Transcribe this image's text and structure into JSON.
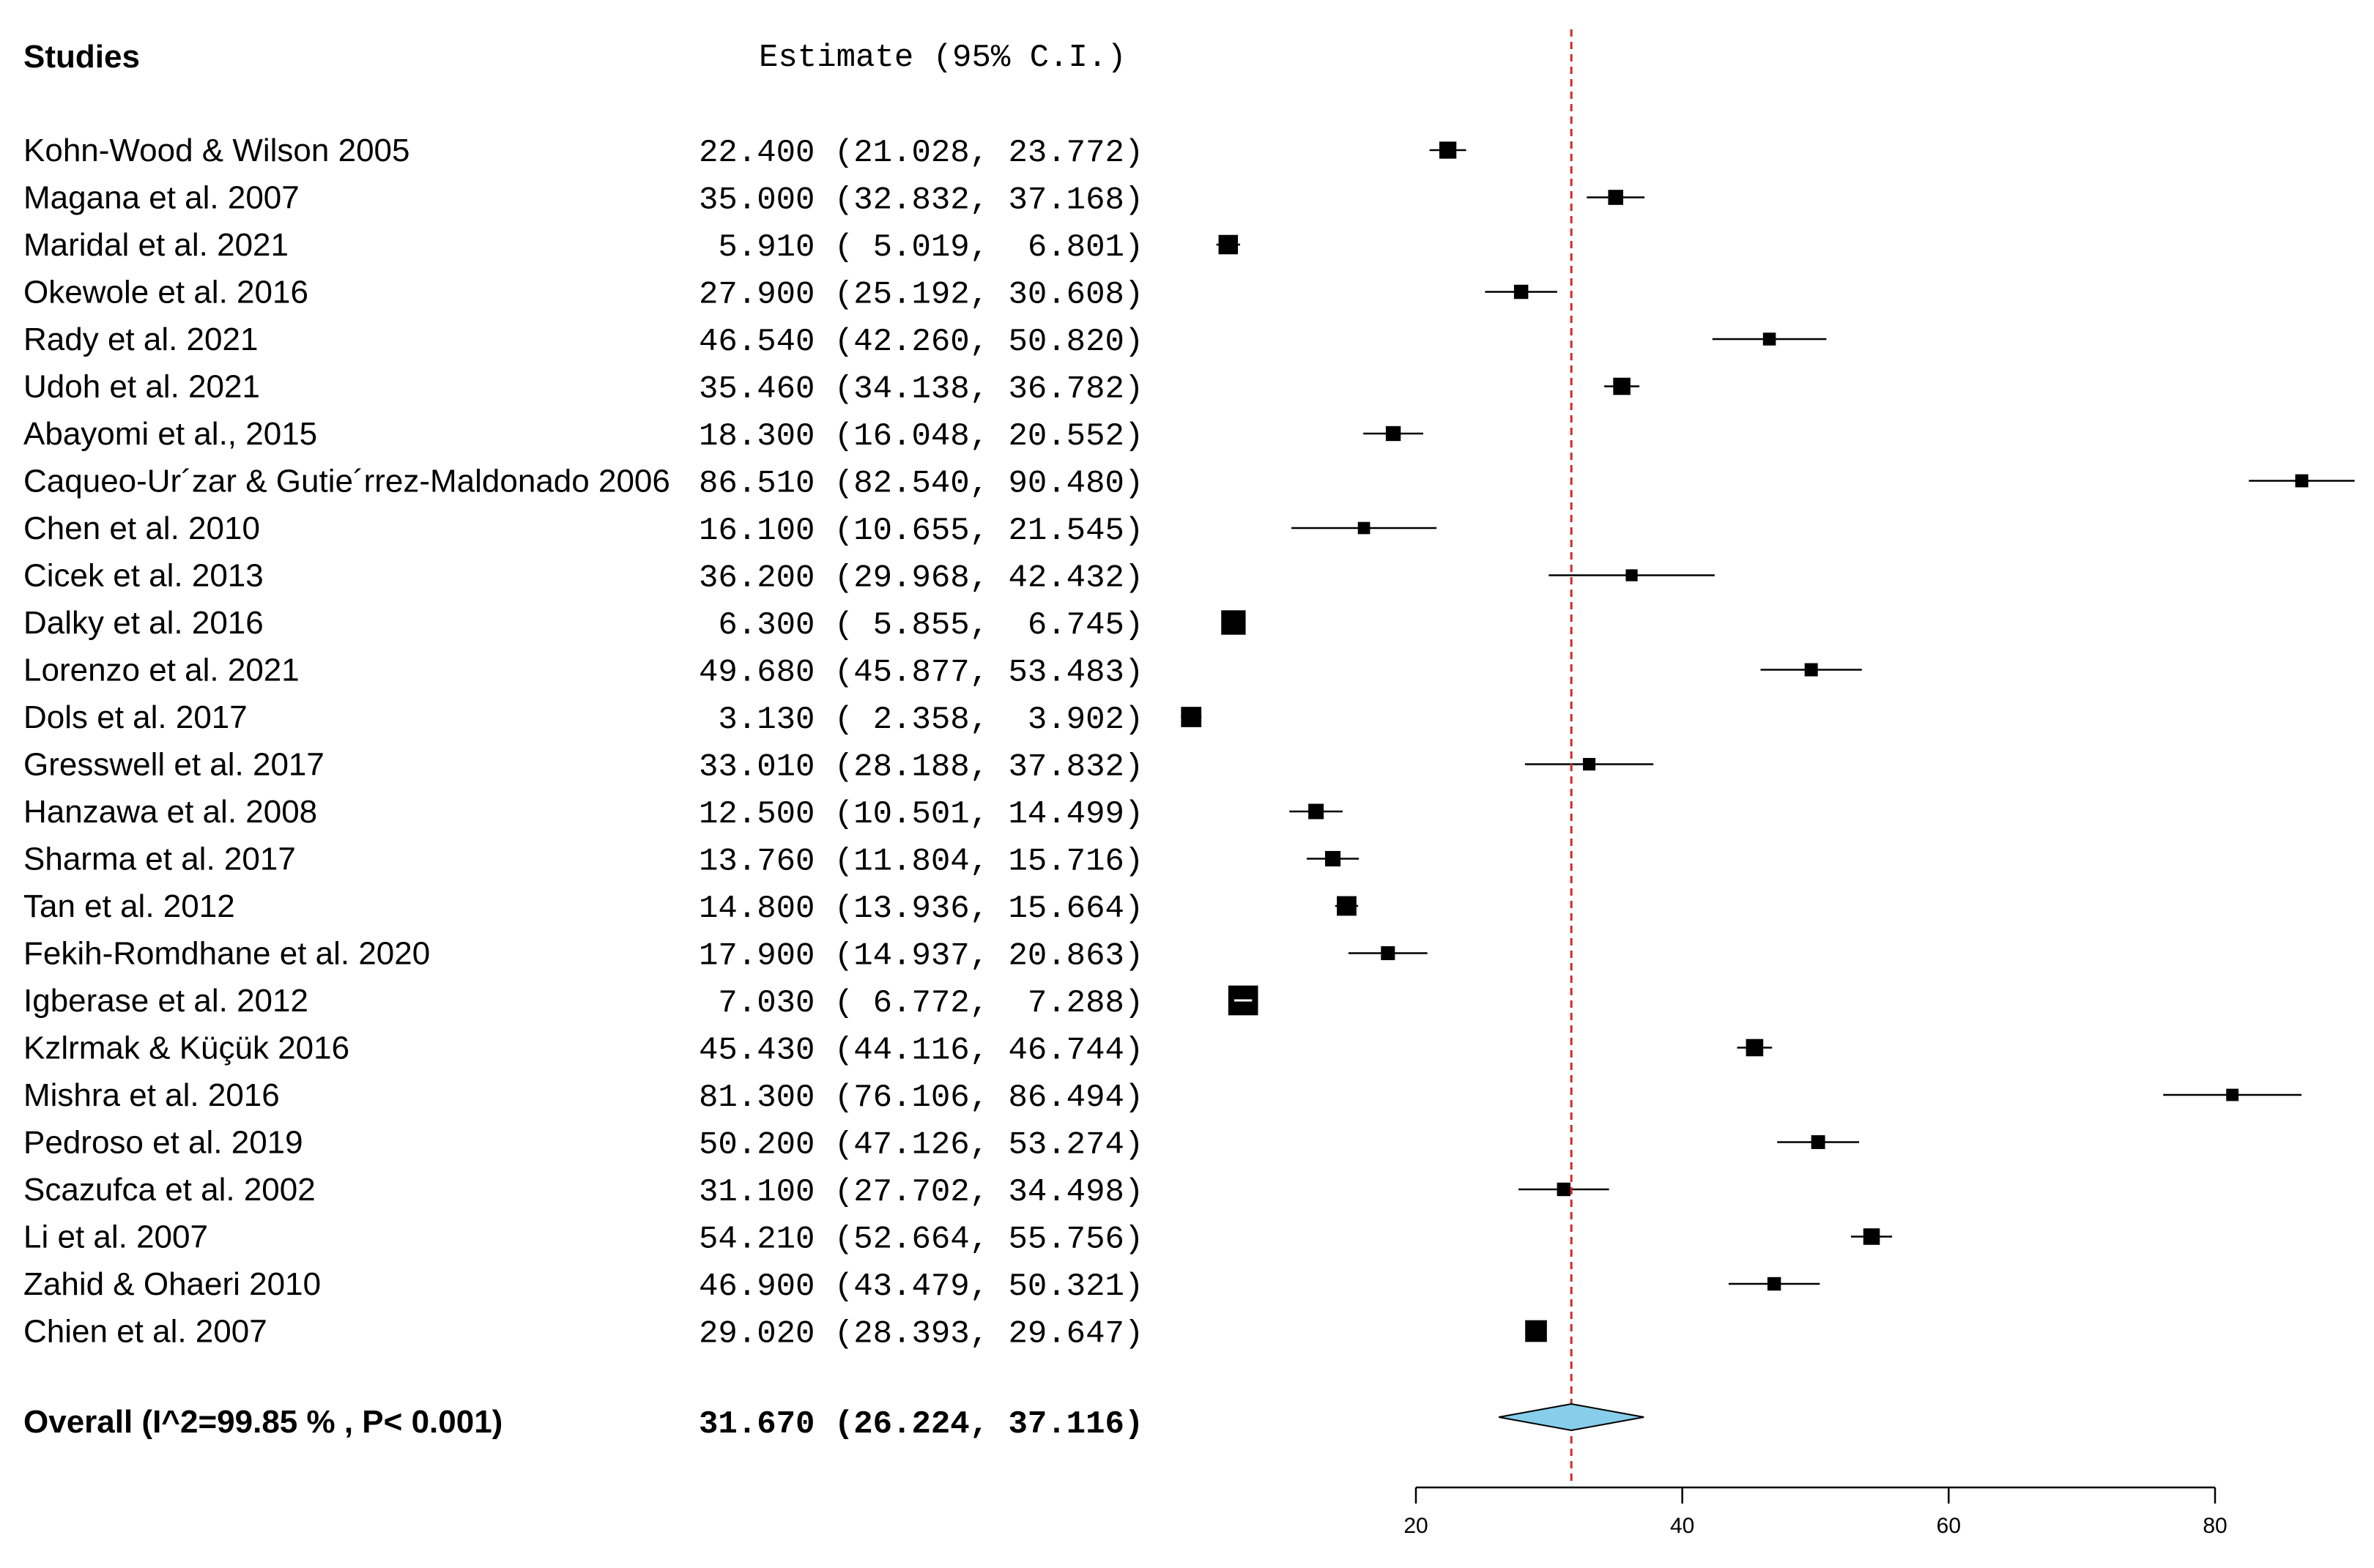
{
  "chart_data": {
    "type": "forest",
    "header_studies": "Studies",
    "header_estimate": "Estimate (95% C.I.)",
    "studies": [
      {
        "name": "Kohn-Wood & Wilson 2005",
        "estimate": 22.4,
        "lower": 21.028,
        "upper": 23.772,
        "text": "22.400 (21.028, 23.772)"
      },
      {
        "name": "Magana et al. 2007",
        "estimate": 35.0,
        "lower": 32.832,
        "upper": 37.168,
        "text": "35.000 (32.832, 37.168)"
      },
      {
        "name": "Maridal et al. 2021",
        "estimate": 5.91,
        "lower": 5.019,
        "upper": 6.801,
        "text": " 5.910 ( 5.019,  6.801)"
      },
      {
        "name": "Okewole et al. 2016",
        "estimate": 27.9,
        "lower": 25.192,
        "upper": 30.608,
        "text": "27.900 (25.192, 30.608)"
      },
      {
        "name": "Rady et al. 2021",
        "estimate": 46.54,
        "lower": 42.26,
        "upper": 50.82,
        "text": "46.540 (42.260, 50.820)"
      },
      {
        "name": "Udoh et al. 2021",
        "estimate": 35.46,
        "lower": 34.138,
        "upper": 36.782,
        "text": "35.460 (34.138, 36.782)"
      },
      {
        "name": "Abayomi et al., 2015",
        "estimate": 18.3,
        "lower": 16.048,
        "upper": 20.552,
        "text": "18.300 (16.048, 20.552)"
      },
      {
        "name": "Caqueo-Ur´zar & Gutie´rrez-Maldonado 2006",
        "estimate": 86.51,
        "lower": 82.54,
        "upper": 90.48,
        "text": "86.510 (82.540, 90.480)"
      },
      {
        "name": "Chen et al. 2010",
        "estimate": 16.1,
        "lower": 10.655,
        "upper": 21.545,
        "text": "16.100 (10.655, 21.545)"
      },
      {
        "name": "Cicek et al. 2013",
        "estimate": 36.2,
        "lower": 29.968,
        "upper": 42.432,
        "text": "36.200 (29.968, 42.432)"
      },
      {
        "name": "Dalky et al. 2016",
        "estimate": 6.3,
        "lower": 5.855,
        "upper": 6.745,
        "text": " 6.300 ( 5.855,  6.745)"
      },
      {
        "name": "Lorenzo et al. 2021",
        "estimate": 49.68,
        "lower": 45.877,
        "upper": 53.483,
        "text": "49.680 (45.877, 53.483)"
      },
      {
        "name": "Dols et al. 2017",
        "estimate": 3.13,
        "lower": 2.358,
        "upper": 3.902,
        "text": " 3.130 ( 2.358,  3.902)"
      },
      {
        "name": "Gresswell et al. 2017",
        "estimate": 33.01,
        "lower": 28.188,
        "upper": 37.832,
        "text": "33.010 (28.188, 37.832)"
      },
      {
        "name": "Hanzawa et al. 2008",
        "estimate": 12.5,
        "lower": 10.501,
        "upper": 14.499,
        "text": "12.500 (10.501, 14.499)"
      },
      {
        "name": "Sharma et al. 2017",
        "estimate": 13.76,
        "lower": 11.804,
        "upper": 15.716,
        "text": "13.760 (11.804, 15.716)"
      },
      {
        "name": "Tan et al. 2012",
        "estimate": 14.8,
        "lower": 13.936,
        "upper": 15.664,
        "text": "14.800 (13.936, 15.664)"
      },
      {
        "name": "Fekih-Romdhane et al. 2020",
        "estimate": 17.9,
        "lower": 14.937,
        "upper": 20.863,
        "text": "17.900 (14.937, 20.863)"
      },
      {
        "name": "Igberase et al.  2012",
        "estimate": 7.03,
        "lower": 6.772,
        "upper": 7.288,
        "text": " 7.030 ( 6.772,  7.288)"
      },
      {
        "name": "Kzlrmak & Küçük  2016",
        "estimate": 45.43,
        "lower": 44.116,
        "upper": 46.744,
        "text": "45.430 (44.116, 46.744)"
      },
      {
        "name": "Mishra et al. 2016",
        "estimate": 81.3,
        "lower": 76.106,
        "upper": 86.494,
        "text": "81.300 (76.106, 86.494)"
      },
      {
        "name": "Pedroso et al. 2019",
        "estimate": 50.2,
        "lower": 47.126,
        "upper": 53.274,
        "text": "50.200 (47.126, 53.274)"
      },
      {
        "name": "Scazufca et al. 2002",
        "estimate": 31.1,
        "lower": 27.702,
        "upper": 34.498,
        "text": "31.100 (27.702, 34.498)"
      },
      {
        "name": "Li et al. 2007",
        "estimate": 54.21,
        "lower": 52.664,
        "upper": 55.756,
        "text": "54.210 (52.664, 55.756)"
      },
      {
        "name": "Zahid  & Ohaeri 2010",
        "estimate": 46.9,
        "lower": 43.479,
        "upper": 50.321,
        "text": "46.900 (43.479, 50.321)"
      },
      {
        "name": "Chien et al. 2007",
        "estimate": 29.02,
        "lower": 28.393,
        "upper": 29.647,
        "text": "29.020 (28.393, 29.647)"
      }
    ],
    "overall": {
      "name": "Overall (I^2=99.85 % , P< 0.001)",
      "estimate": 31.67,
      "lower": 26.224,
      "upper": 37.116,
      "text": "31.670 (26.224, 37.116)"
    },
    "x_axis": {
      "ticks": [
        20,
        40,
        60,
        80
      ],
      "tick_labels": [
        "20",
        "40",
        "60",
        "80"
      ]
    },
    "reference_line": 31.67,
    "colors": {
      "marker": "#000000",
      "reference_line": "#d62728",
      "diamond_fill": "#87ceeb",
      "axis": "#000000"
    }
  }
}
